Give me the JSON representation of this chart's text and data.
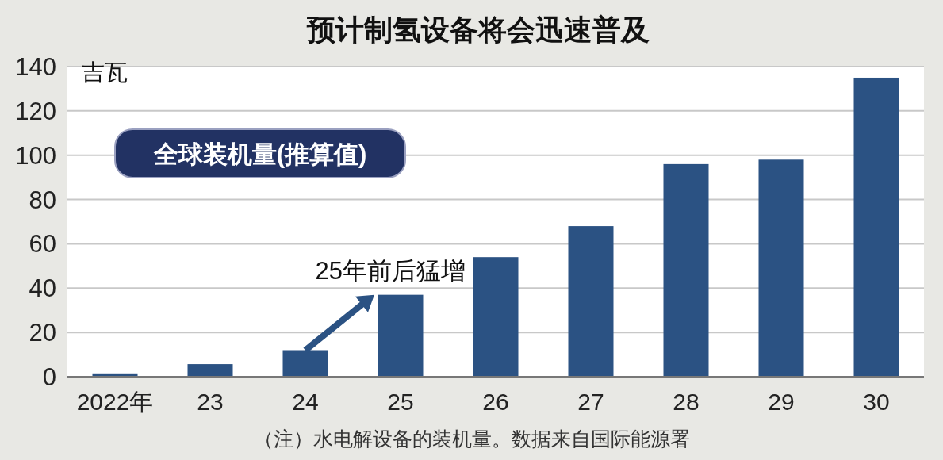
{
  "chart_data": {
    "type": "bar",
    "title": "预计制氢设备将会迅速普及",
    "subtitle": "全球装机量(推算值)",
    "ylabel": "吉瓦",
    "categories": [
      "2022年",
      "23",
      "24",
      "25",
      "26",
      "27",
      "28",
      "29",
      "30"
    ],
    "values": [
      1.5,
      5.7,
      12,
      37,
      54,
      68,
      96,
      98,
      135
    ],
    "color": "#2b5283",
    "ylim": [
      0,
      140
    ],
    "yticks": [
      0,
      20,
      40,
      60,
      80,
      100,
      120,
      140
    ],
    "grid": "y",
    "annotations": [
      {
        "text": "25年前后猛增",
        "x": "25",
        "y": 37
      },
      "（注）水电解设备的装机量。数据来自国际能源署"
    ]
  }
}
